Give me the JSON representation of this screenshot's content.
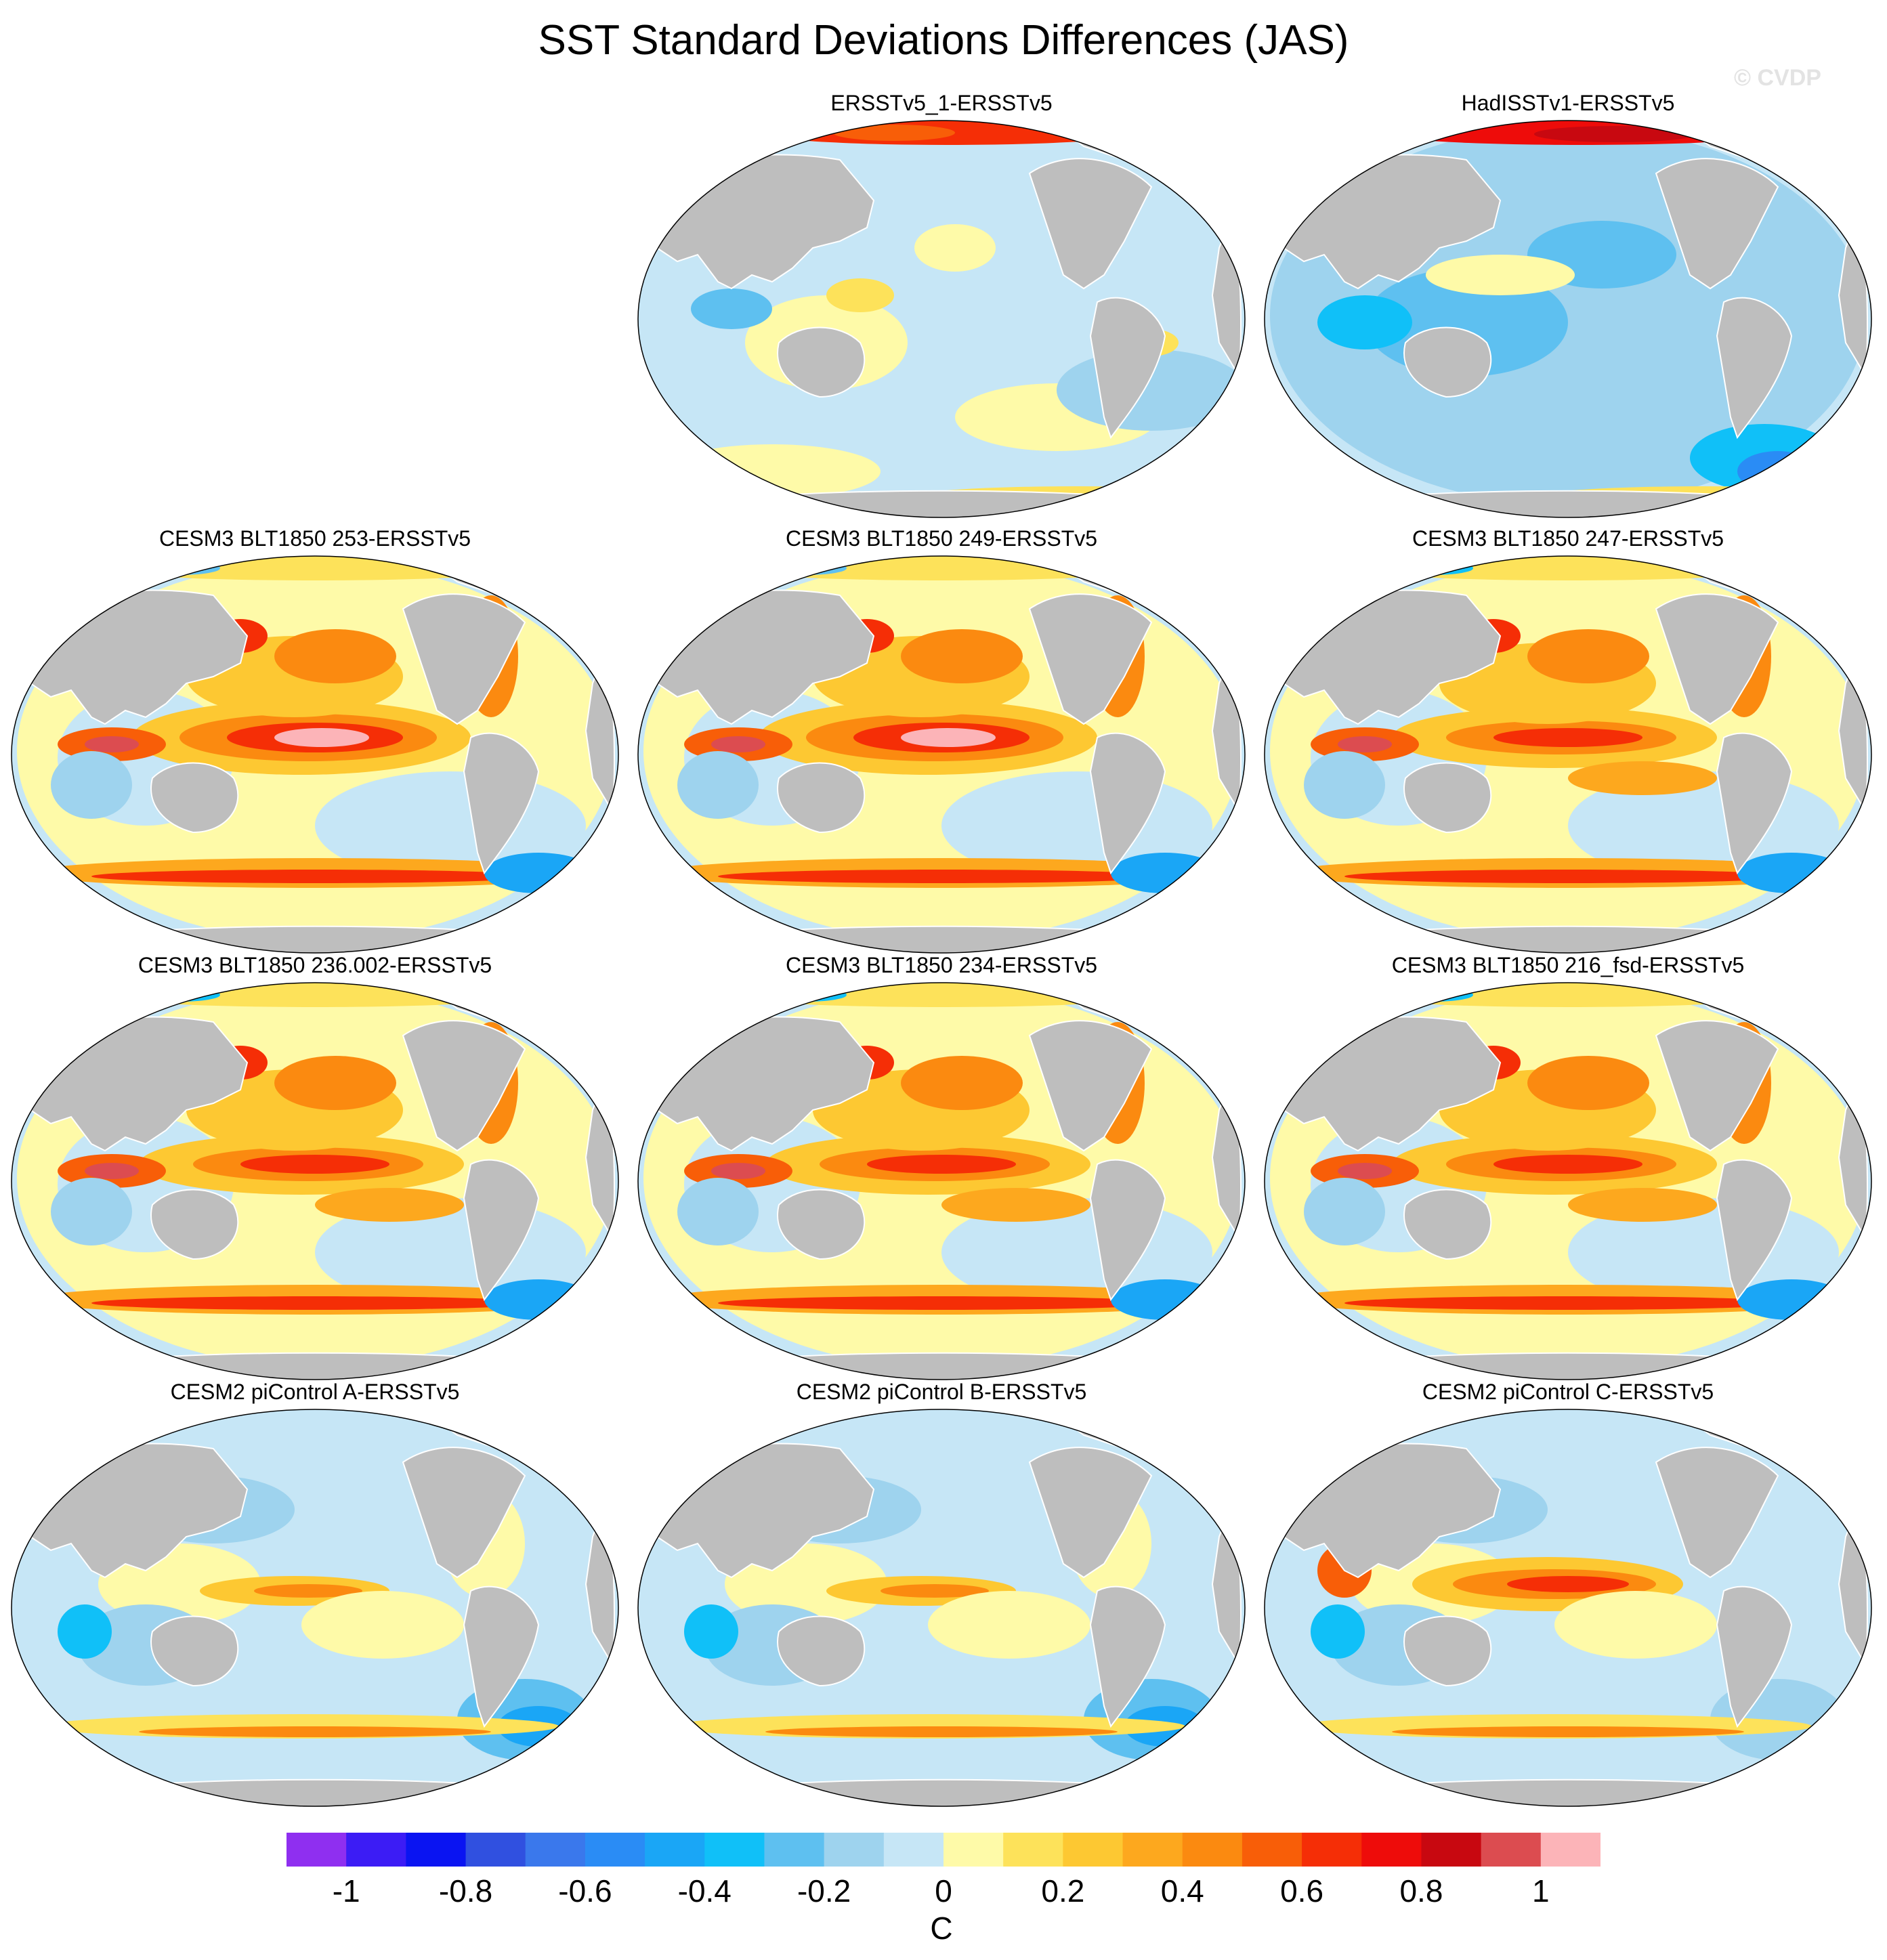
{
  "title": "SST Standard Deviations Differences (JAS)",
  "watermark": "© CVDP",
  "panels": [
    {
      "title": "ERSSTv5_1-ERSSTv5",
      "pattern": "obs_small"
    },
    {
      "title": "HadISSTv1-ERSSTv5",
      "pattern": "obs_blue"
    },
    {
      "title": "CESM3 BLT1850 253-ERSSTv5",
      "pattern": "model_enso_strong"
    },
    {
      "title": "CESM3 BLT1850 249-ERSSTv5",
      "pattern": "model_enso_strong"
    },
    {
      "title": "CESM3 BLT1850 247-ERSSTv5",
      "pattern": "model_enso"
    },
    {
      "title": "CESM3 BLT1850 236.002-ERSSTv5",
      "pattern": "model_enso"
    },
    {
      "title": "CESM3 BLT1850 234-ERSSTv5",
      "pattern": "model_enso"
    },
    {
      "title": "CESM3 BLT1850 216_fsd-ERSSTv5",
      "pattern": "model_enso"
    },
    {
      "title": "CESM2 piControl A-ERSSTv5",
      "pattern": "cesm2"
    },
    {
      "title": "CESM2 piControl B-ERSSTv5",
      "pattern": "cesm2"
    },
    {
      "title": "CESM2 piControl C-ERSSTv5",
      "pattern": "cesm2_enso"
    }
  ],
  "colorbar": {
    "unit": "C",
    "tick_labels": [
      "-1",
      "-0.8",
      "-0.6",
      "-0.4",
      "-0.2",
      "0",
      "0.2",
      "0.4",
      "0.6",
      "0.8",
      "1"
    ],
    "colors": [
      "#8f2ff0",
      "#3c1cf5",
      "#0a14f2",
      "#3050e0",
      "#3a78ec",
      "#2a8cf5",
      "#1aa6f6",
      "#10c0f8",
      "#5ec0f0",
      "#9ed3ee",
      "#c6e6f6",
      "#fefaa8",
      "#fde25a",
      "#fdc832",
      "#fda81e",
      "#fb8a10",
      "#f85e08",
      "#f52e06",
      "#ee0c0a",
      "#c80810",
      "#dc4c50",
      "#fcb4b8"
    ]
  },
  "colors": {
    "land": "#bebebe",
    "ocean_zero": "#fefaa8",
    "coast": "#ffffff"
  }
}
